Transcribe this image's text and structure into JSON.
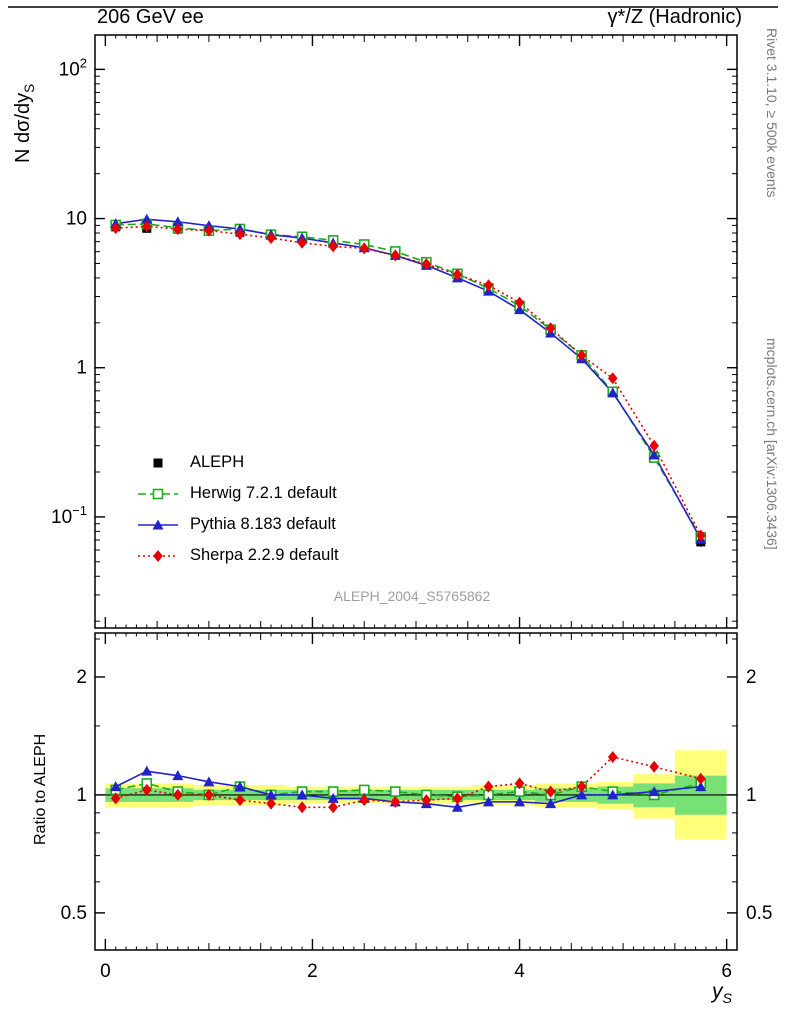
{
  "header": {
    "title_left": "206 GeV ee",
    "title_right": "γ*/Z (Hadronic)"
  },
  "side_notes": {
    "right_top": "Rivet 3.1.10, ≥ 500k events",
    "right_bottom": "mcplots.cern.ch [arXiv:1306.3436]"
  },
  "watermark": "ALEPH_2004_S5765862",
  "axes": {
    "ylabel_main": "N dσ/dy",
    "ylabel_main_sub": "S",
    "xlabel": "y",
    "xlabel_sub": "S",
    "ylabel_ratio": "Ratio to ALEPH"
  },
  "chart_data": {
    "type": "line",
    "title": "206 GeV ee — γ*/Z (Hadronic)",
    "xlabel": "y_S",
    "ylabel": "N dσ/dy_S",
    "x_range": [
      -0.1,
      6.1
    ],
    "x_ticks": [
      0,
      2,
      4,
      6
    ],
    "x": [
      0.1,
      0.4,
      0.7,
      1.0,
      1.3,
      1.6,
      1.9,
      2.2,
      2.5,
      2.8,
      3.1,
      3.4,
      3.7,
      4.0,
      4.3,
      4.6,
      4.9,
      5.3,
      5.75
    ],
    "bin_edges": [
      0,
      0.25,
      0.55,
      0.85,
      1.15,
      1.45,
      1.75,
      2.05,
      2.35,
      2.65,
      2.95,
      3.25,
      3.55,
      3.85,
      4.15,
      4.45,
      4.75,
      5.1,
      5.5,
      6.0
    ],
    "main": {
      "y_scale": "log",
      "y_range": [
        0.018,
        170
      ],
      "y_ticks": [
        {
          "value": 100,
          "label": "10",
          "exp": "2"
        },
        {
          "value": 10,
          "label": "10",
          "exp": ""
        },
        {
          "value": 1,
          "label": "1",
          "exp": ""
        },
        {
          "value": 0.1,
          "label": "10",
          "exp": "−1"
        }
      ],
      "series": [
        {
          "key": "aleph",
          "name": "ALEPH",
          "color": "#000000",
          "marker": "square",
          "fill": "filled",
          "line": "none",
          "values": [
            8.8,
            8.6,
            8.5,
            8.3,
            8.1,
            7.8,
            7.4,
            7.0,
            6.5,
            5.9,
            5.1,
            4.3,
            3.4,
            2.55,
            1.8,
            1.15,
            0.68,
            0.25,
            0.068
          ],
          "errors": [
            0.15,
            0.15,
            0.15,
            0.14,
            0.14,
            0.13,
            0.12,
            0.12,
            0.11,
            0.1,
            0.09,
            0.08,
            0.06,
            0.05,
            0.04,
            0.03,
            0.02,
            0.012,
            0.005
          ]
        },
        {
          "key": "herwig",
          "name": "Herwig 7.2.1 default",
          "color": "#1faa1f",
          "marker": "square",
          "fill": "open",
          "line": "dashed",
          "values": [
            9.06,
            9.2,
            8.67,
            8.3,
            8.51,
            7.8,
            7.55,
            7.14,
            6.7,
            6.02,
            5.1,
            4.26,
            3.4,
            2.6,
            1.8,
            1.21,
            0.69,
            0.25,
            0.073
          ]
        },
        {
          "key": "pythia",
          "name": "Pythia 8.183 default",
          "color": "#2222cc",
          "marker": "triangle",
          "fill": "filled",
          "line": "solid",
          "values": [
            9.24,
            9.89,
            9.52,
            8.96,
            8.51,
            7.8,
            7.4,
            6.86,
            6.37,
            5.66,
            4.85,
            4.0,
            3.26,
            2.45,
            1.71,
            1.15,
            0.68,
            0.26,
            0.071
          ]
        },
        {
          "key": "sherpa",
          "name": "Sherpa 2.2.9 default",
          "color": "#e60000",
          "marker": "diamond",
          "fill": "filled",
          "line": "dotted",
          "values": [
            8.62,
            8.86,
            8.5,
            8.3,
            7.86,
            7.41,
            6.88,
            6.51,
            6.31,
            5.66,
            4.95,
            4.21,
            3.57,
            2.73,
            1.84,
            1.21,
            0.85,
            0.3,
            0.075
          ]
        }
      ]
    },
    "ratio": {
      "y_scale": "log",
      "y_range": [
        0.402,
        2.59
      ],
      "reference_line": 1,
      "y_ticks": [
        {
          "value": 2,
          "label": "2"
        },
        {
          "value": 1,
          "label": "1"
        },
        {
          "value": 0.5,
          "label": "0.5"
        }
      ],
      "y_minor": [
        0.6,
        0.7,
        0.8,
        0.9,
        1.5,
        2.5
      ],
      "band_yellow_color": "#ffff7a",
      "band_green_color": "#77e077",
      "band_yellow_lo": [
        0.93,
        0.93,
        0.93,
        0.94,
        0.94,
        0.94,
        0.95,
        0.95,
        0.95,
        0.95,
        0.95,
        0.95,
        0.94,
        0.94,
        0.93,
        0.93,
        0.92,
        0.87,
        0.77
      ],
      "band_yellow_hi": [
        1.07,
        1.07,
        1.07,
        1.06,
        1.06,
        1.06,
        1.05,
        1.05,
        1.05,
        1.05,
        1.05,
        1.05,
        1.06,
        1.06,
        1.07,
        1.07,
        1.08,
        1.13,
        1.3
      ],
      "band_green_lo": [
        0.96,
        0.96,
        0.96,
        0.97,
        0.97,
        0.97,
        0.97,
        0.97,
        0.97,
        0.97,
        0.97,
        0.97,
        0.97,
        0.97,
        0.96,
        0.96,
        0.95,
        0.93,
        0.89
      ],
      "band_green_hi": [
        1.04,
        1.04,
        1.04,
        1.03,
        1.03,
        1.03,
        1.03,
        1.03,
        1.03,
        1.03,
        1.03,
        1.03,
        1.03,
        1.03,
        1.04,
        1.04,
        1.05,
        1.07,
        1.12
      ],
      "series": [
        {
          "name": "Herwig 7.2.1 default",
          "values": [
            1.03,
            1.07,
            1.02,
            1.0,
            1.05,
            1.0,
            1.02,
            1.02,
            1.03,
            1.02,
            1.0,
            0.99,
            1.0,
            1.02,
            1.0,
            1.05,
            1.02,
            1.0,
            1.07
          ]
        },
        {
          "name": "Pythia 8.183 default",
          "values": [
            1.05,
            1.15,
            1.12,
            1.08,
            1.05,
            1.0,
            1.0,
            0.98,
            0.98,
            0.96,
            0.95,
            0.93,
            0.96,
            0.96,
            0.95,
            1.0,
            1.0,
            1.02,
            1.05
          ]
        },
        {
          "name": "Sherpa 2.2.9 default",
          "values": [
            0.98,
            1.03,
            1.0,
            1.0,
            0.97,
            0.95,
            0.93,
            0.93,
            0.97,
            0.96,
            0.97,
            0.98,
            1.05,
            1.07,
            1.02,
            1.05,
            1.25,
            1.18,
            1.1
          ]
        }
      ]
    }
  }
}
